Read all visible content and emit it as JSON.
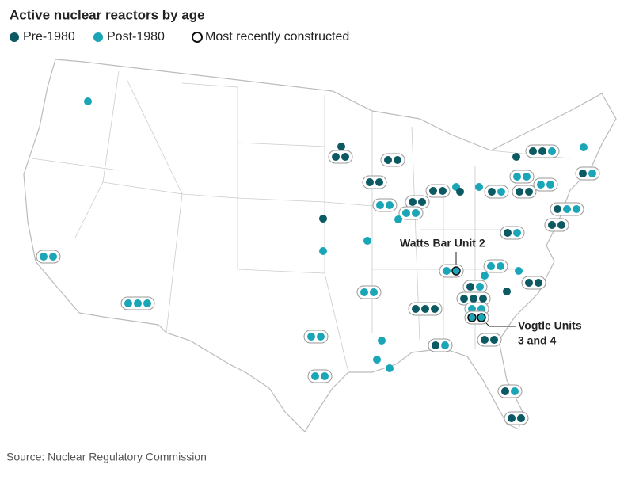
{
  "title": "Active nuclear reactors by age",
  "legend": [
    {
      "label": "Pre-1980",
      "color": "#0b5963"
    },
    {
      "label": "Post-1980",
      "color": "#1aa6b7"
    },
    {
      "label": "Most recently constructed",
      "color": "#111111"
    }
  ],
  "annotations": [
    "Watts Bar Unit 2",
    "Vogtle Units",
    "3 and 4"
  ],
  "source": "Source: Nuclear Regulatory Commission"
}
